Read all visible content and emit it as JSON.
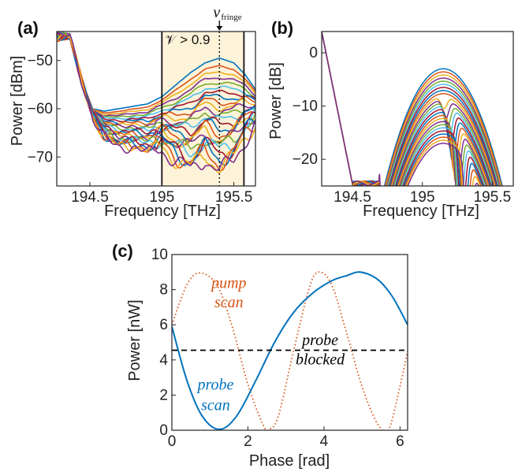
{
  "chart_data": [
    {
      "panel": "(a)",
      "type": "line",
      "xlabel": "Frequency [THz]",
      "ylabel": "Power [dBm]",
      "xlim": [
        194.27,
        195.65
      ],
      "ylim": [
        -76,
        -44
      ],
      "xticks": [
        "194.5",
        "195",
        "195.5"
      ],
      "xtick_values": [
        194.5,
        195.0,
        195.5
      ],
      "yticks": [
        "−50",
        "−60",
        "−70"
      ],
      "ytick_values": [
        -50,
        -60,
        -70
      ],
      "annotations": {
        "visibility_label": "𝒱 > 0.9",
        "fringe_label": "ν",
        "fringe_subscript": "fringe",
        "highlight_range": [
          195.0,
          195.57
        ],
        "fringe_position": 195.4
      },
      "envelope": {
        "x": [
          194.36,
          194.44,
          194.52,
          194.6,
          194.7,
          194.8,
          194.9,
          195.0,
          195.1,
          195.2,
          195.3,
          195.4,
          195.5,
          195.58,
          195.65
        ],
        "upper": [
          -45,
          -54,
          -60,
          -60.5,
          -60,
          -59.5,
          -59,
          -57.5,
          -55,
          -52.5,
          -50.5,
          -49.5,
          -50.5,
          -53,
          -56
        ],
        "lower": [
          -45,
          -54,
          -62,
          -66,
          -68,
          -68,
          -69,
          -68,
          -71,
          -73,
          -70,
          -73,
          -71,
          -66,
          -63
        ]
      },
      "series_count": 25,
      "colors": [
        "#0072BD",
        "#D95319",
        "#EDB120",
        "#7E2F8E",
        "#77AC30",
        "#4DBEEE",
        "#A2142F"
      ]
    },
    {
      "panel": "(b)",
      "type": "line",
      "xlabel": "Frequency [THz]",
      "ylabel": "Power [dB]",
      "xlim": [
        194.28,
        195.65
      ],
      "ylim": [
        -25,
        4
      ],
      "xticks": [
        "194.5",
        "195",
        "195.5"
      ],
      "xtick_values": [
        194.5,
        195.0,
        195.5
      ],
      "yticks": [
        "0",
        "−10",
        "−20"
      ],
      "ytick_values": [
        0,
        -10,
        -20
      ],
      "peak": {
        "x": 195.15,
        "y": -3
      },
      "series_count": 25,
      "colors": [
        "#0072BD",
        "#D95319",
        "#EDB120",
        "#7E2F8E",
        "#77AC30",
        "#4DBEEE",
        "#A2142F"
      ]
    },
    {
      "panel": "(c)",
      "type": "line",
      "xlabel": "Phase [rad]",
      "ylabel": "Power [nW]",
      "xlim": [
        0,
        6.2
      ],
      "ylim": [
        0,
        10
      ],
      "xticks": [
        "0",
        "2",
        "4",
        "6"
      ],
      "xtick_values": [
        0,
        2,
        4,
        6
      ],
      "yticks": [
        "0",
        "2",
        "4",
        "6",
        "8",
        "10"
      ],
      "ytick_values": [
        0,
        2,
        4,
        6,
        8,
        10
      ],
      "series": [
        {
          "label": "pump scan",
          "style": "dotted",
          "color": "#D95319",
          "x": [
            0,
            0.4,
            0.75,
            1.2,
            1.6,
            2.0,
            2.4,
            2.55,
            2.8,
            3.2,
            3.6,
            3.85,
            4.2,
            4.6,
            5.0,
            5.4,
            5.7,
            6.0,
            6.2
          ],
          "y": [
            6.0,
            8.3,
            8.95,
            8.2,
            5.8,
            2.6,
            0.3,
            0.05,
            0.8,
            4.5,
            8.0,
            9.0,
            8.3,
            5.5,
            2.5,
            0.4,
            0.05,
            2.5,
            4.5
          ]
        },
        {
          "label": "probe scan",
          "style": "solid",
          "color": "#0072BD",
          "x": [
            0,
            0.4,
            0.8,
            1.25,
            1.7,
            2.2,
            2.7,
            3.2,
            3.7,
            4.2,
            4.6,
            4.95,
            5.4,
            5.8,
            6.2
          ],
          "y": [
            5.9,
            2.8,
            0.8,
            0.05,
            0.8,
            2.8,
            5.0,
            6.7,
            7.8,
            8.5,
            8.8,
            9.0,
            8.6,
            7.6,
            6.0
          ]
        },
        {
          "label": "probe blocked",
          "style": "dashed",
          "color": "#000000",
          "x": [
            0,
            6.2
          ],
          "y": [
            4.55,
            4.55
          ]
        }
      ],
      "annotations": [
        {
          "line1": "pump",
          "line2": "scan",
          "color": "#D95319"
        },
        {
          "line1": "probe",
          "line2": "blocked",
          "color": "#000000"
        },
        {
          "line1": "probe",
          "line2": "scan",
          "color": "#0072BD"
        }
      ]
    }
  ]
}
